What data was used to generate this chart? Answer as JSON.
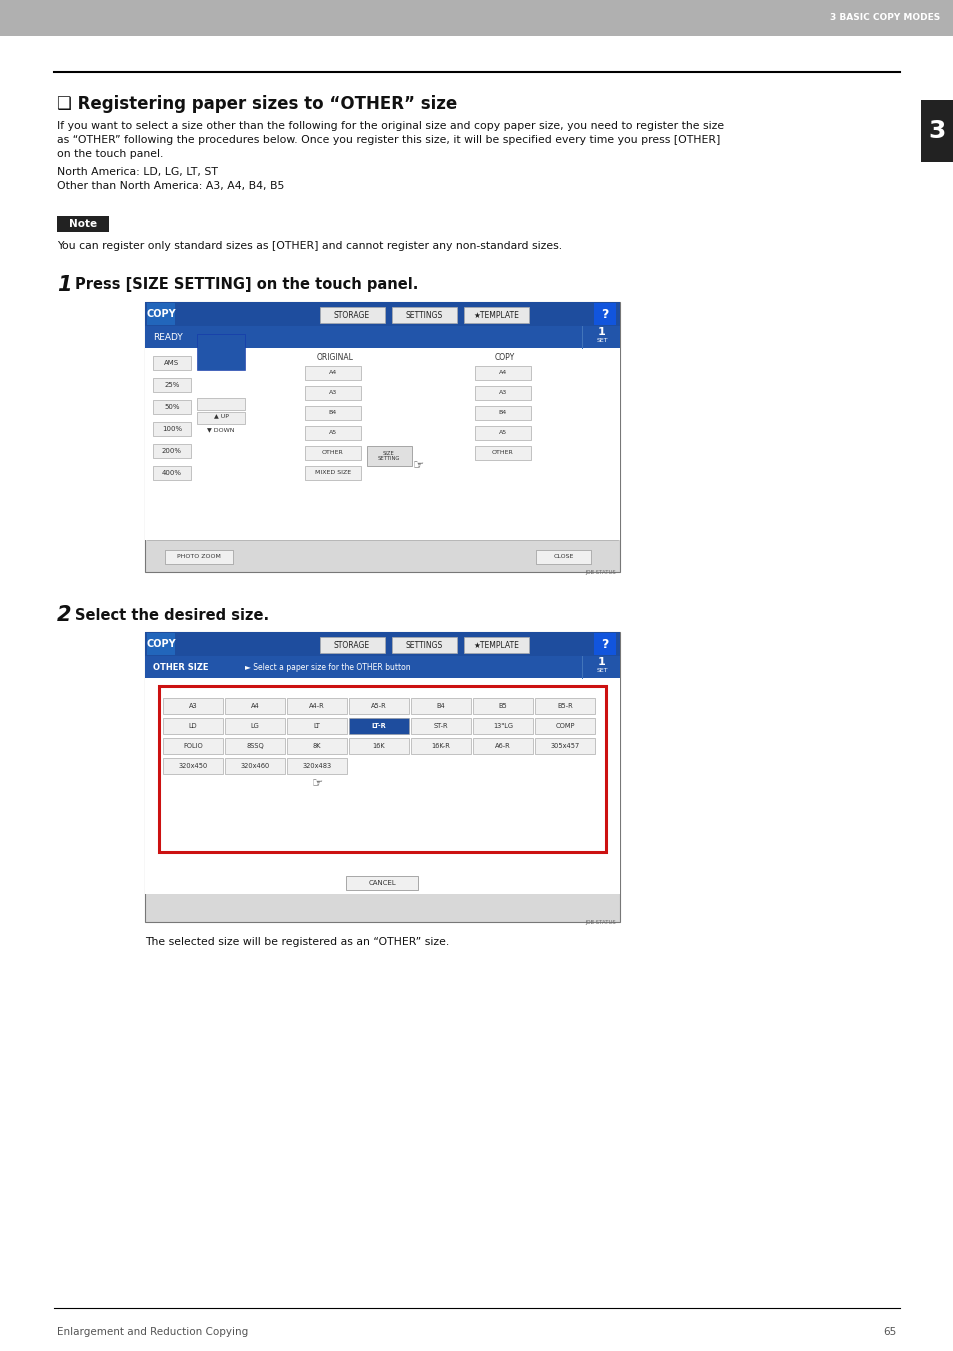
{
  "page_bg": "#ffffff",
  "header_bg": "#b0b0b0",
  "header_text": "3 BASIC COPY MODES",
  "header_text_color": "#ffffff",
  "tab_right_bg": "#222222",
  "tab_right_text": "3",
  "tab_right_color": "#ffffff",
  "section_title": "❑ Registering paper sizes to “OTHER” size",
  "body_line1": "If you want to select a size other than the following for the original size and copy paper size, you need to register the size",
  "body_line2": "as “OTHER” following the procedures below. Once you register this size, it will be specified every time you press [OTHER]",
  "body_line3": "on the touch panel.",
  "body_line4": "North America: LD, LG, LT, ST",
  "body_line5": "Other than North America: A3, A4, B4, B5",
  "note_label": "Note",
  "note_text": "You can register only standard sizes as [OTHER] and cannot register any non-standard sizes.",
  "step1_num": "1",
  "step1_title": "Press [SIZE SETTING] on the touch panel.",
  "step2_num": "2",
  "step2_title": "Select the desired size.",
  "step2_note": "The selected size will be registered as an “OTHER” size.",
  "footer_text": "Enlargement and Reduction Copying",
  "footer_page": "65"
}
